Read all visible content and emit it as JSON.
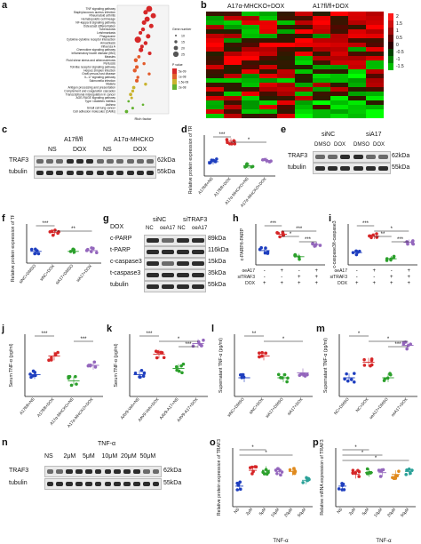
{
  "panel_labels": [
    "a",
    "b",
    "c",
    "d",
    "e",
    "f",
    "g",
    "h",
    "i",
    "j",
    "k",
    "l",
    "m",
    "n",
    "o",
    "p"
  ],
  "a": {
    "xlabel": "Rich factor",
    "legend_size_title": "Gene number",
    "legend_size_values": [
      "10",
      "15",
      "20",
      "25"
    ],
    "legend_color_title": "P value",
    "legend_color_values": [
      "5e-09",
      "1e-08",
      "1.5e-08",
      "2e-08"
    ],
    "terms": [
      "TNF signaling pathway",
      "Staphylococcus aureus infection",
      "Rheumatoid arthritis",
      "Hematopoietic cell lineage",
      "NF-kappa B signaling pathway",
      "Osteoclast differentiation",
      "Tuberculosis",
      "Leishmaniasis",
      "Phagosome",
      "Cytokine-cytokine receptor interaction",
      "Amoebiasis",
      "Influenza A",
      "Chemokine signaling pathway",
      "Inflammatory bowel disease (IBD)",
      "Measles",
      "Fluid shear stress and atherosclerosis",
      "Pertussis",
      "Toll-like receptor signaling pathway",
      "Herpes simplex infection",
      "Graft-versus-host disease",
      "IL-17 signaling pathway",
      "Salmonella infection",
      "Malaria",
      "Antigen processing and presentation",
      "Complement and coagulation cascades",
      "Transcriptional misregulation in cancer",
      "AGE-RAGE signaling pathway",
      "Type I diabetes mellitus",
      "Asthma",
      "Small cell lung cancer",
      "Cell adhesion molecules (CAMs)"
    ]
  },
  "b": {
    "group1": "A17fl/fl+DOX",
    "group2": "A17α-MHCKO+DOX",
    "scale_values": [
      "2",
      "1.5",
      "1",
      "0.5",
      "0",
      "-0.5",
      "-1",
      "-1.5"
    ]
  },
  "c": {
    "group1": "A17fl/fl",
    "group2": "A17α-MHCKO",
    "conds": [
      "NS",
      "DOX",
      "NS",
      "DOX"
    ],
    "rows": [
      {
        "name": "TRAF3",
        "kda": "62kDa"
      },
      {
        "name": "tubulin",
        "kda": "55kDa"
      }
    ]
  },
  "d": {
    "ylabel": "Relative protein expression of TRAF3",
    "categories": [
      "A17fl/fl+NS",
      "A17fl/fl+DOX",
      "A17α-MHCKO+NS",
      "A17α-MHCKO+DOX"
    ],
    "sig": [
      "***",
      "*"
    ]
  },
  "e": {
    "groups": [
      "siNC",
      "siA17"
    ],
    "conds": [
      "DMSO",
      "DOX",
      "DMSO",
      "DOX"
    ],
    "rows": [
      {
        "name": "TRAF3",
        "kda": "62kDa"
      },
      {
        "name": "tubulin",
        "kda": "55kDa"
      }
    ]
  },
  "f": {
    "ylabel": "Relative protein expression of TRAF3",
    "categories": [
      "siNC+DMSO",
      "siNC+DOX",
      "siA17+DMSO",
      "siA17+DOX"
    ],
    "sig": [
      "***",
      "**"
    ]
  },
  "g": {
    "top": "DOX",
    "groups": [
      "siNC",
      "siTRAF3"
    ],
    "conds": [
      "NC",
      "oeA17",
      "NC",
      "oeA17"
    ],
    "rows": [
      {
        "name": "c-PARP",
        "kda": "89kDa"
      },
      {
        "name": "t-PARP",
        "kda": "116kDa"
      },
      {
        "name": "c-caspase3",
        "kda": "15kDa"
      },
      {
        "name": "t-caspase3",
        "kda": "35kDa"
      },
      {
        "name": "tubulin",
        "kda": "55kDa"
      }
    ]
  },
  "h": {
    "ylabel": "c-PARP/t-PARP",
    "sig": [
      "***",
      "***",
      "*",
      "***"
    ],
    "rows": [
      "oeA17",
      "siTRAF3",
      "DOX"
    ],
    "signs": [
      [
        "-",
        "+",
        "-",
        "+"
      ],
      [
        "-",
        "-",
        "+",
        "+"
      ],
      [
        "+",
        "+",
        "+",
        "+"
      ]
    ]
  },
  "i": {
    "ylabel": "c-caspase3/t-caspase3",
    "sig": [
      "***",
      "*",
      "**",
      "***"
    ],
    "rows": [
      "oeA17",
      "siTRAF3",
      "DOX"
    ],
    "signs": [
      [
        "-",
        "+",
        "-",
        "+"
      ],
      [
        "-",
        "-",
        "+",
        "+"
      ],
      [
        "+",
        "+",
        "+",
        "+"
      ]
    ]
  },
  "j": {
    "ylabel": "Serum TNF-α (pg/ml)",
    "categories": [
      "A17fl/fl+NS",
      "A17fl/fl+DOX",
      "A17α-MHCKO+NS",
      "A17α-MHCKO+DOX"
    ],
    "sig": [
      "***",
      "***"
    ]
  },
  "k": {
    "ylabel": "Serum TNF-α (pg/ml)",
    "categories": [
      "AAV9-Veh+NS",
      "AAV9-Veh+DOX",
      "AAV9-A17+NS",
      "AAV9-A17+DOX"
    ],
    "sig": [
      "***",
      "*",
      "***"
    ]
  },
  "l": {
    "ylabel": "Supernatant TNF-α (pg/ml)",
    "categories": [
      "siNC+DMSO",
      "siNC+DOX",
      "siA17+DMSO",
      "siA17+DOX"
    ],
    "sig": [
      "**",
      "*"
    ]
  },
  "m": {
    "ylabel": "Supernatant TNF-α (pg/ml)",
    "categories": [
      "NC+DMSO",
      "NC+DOX",
      "oeA17+DMSO",
      "oeA17+DOX"
    ],
    "sig": [
      "*",
      "*",
      "***"
    ]
  },
  "n": {
    "top": "TNF-α",
    "conds": [
      "NS",
      "2μM",
      "5μM",
      "10μM",
      "20μM",
      "50μM"
    ],
    "rows": [
      {
        "name": "TRAF3",
        "kda": "62kDa"
      },
      {
        "name": "tubulin",
        "kda": "55kDa"
      }
    ]
  },
  "o": {
    "ylabel": "Relative protein expression of TRAF3",
    "categories": [
      "NS",
      "2μM",
      "5μM",
      "10μM",
      "20μM",
      "50μM"
    ],
    "xgroup": "TNF-α",
    "sig": [
      "*",
      "*"
    ]
  },
  "p": {
    "ylabel": "Relative mRNA expression of TRAF3",
    "categories": [
      "NS",
      "2μM",
      "5μM",
      "10μM",
      "20μM",
      "50μM"
    ],
    "xgroup": "TNF-α",
    "sig": [
      "*",
      "*",
      "*"
    ]
  },
  "colors": {
    "black": "#1a1a1a",
    "red": "#d62728",
    "green": "#2ca02c",
    "purple": "#9467bd",
    "blue": "#1f3fbf",
    "orange": "#e08a1e",
    "teal": "#2aa198"
  }
}
